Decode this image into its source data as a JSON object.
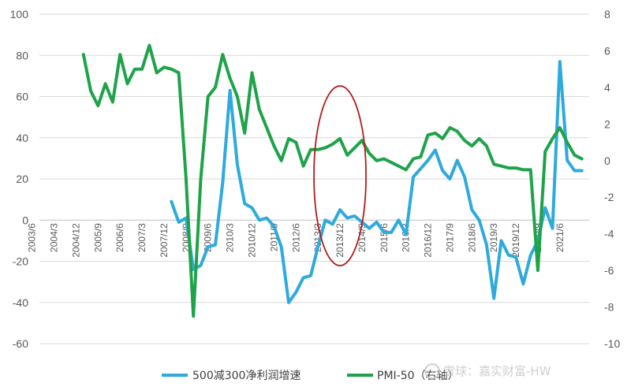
{
  "chart_data": {
    "type": "line",
    "categories": [
      "2003/6",
      "2004/3",
      "2004/12",
      "2005/9",
      "2006/6",
      "2007/3",
      "2007/12",
      "2008/9",
      "2009/6",
      "2010/3",
      "2010/12",
      "2011/9",
      "2012/6",
      "2013/3",
      "2013/12",
      "2014/9",
      "2015/6",
      "2016/3",
      "2016/12",
      "2017/9",
      "2018/6",
      "2019/3",
      "2019/12",
      "2020/9",
      "2021/6"
    ],
    "y_left_ticks": [
      "100",
      "80",
      "60",
      "40",
      "20",
      "0",
      "-20",
      "-40",
      "-60"
    ],
    "y_right_ticks": [
      "8",
      "6",
      "4",
      "2",
      "0",
      "-2",
      "-4",
      "-6",
      "-8",
      "-10"
    ],
    "ylim_left": [
      -60,
      100
    ],
    "ylim_right": [
      -10,
      8
    ],
    "series": [
      {
        "name": "500减300净利润增速",
        "axis": "left",
        "color": "#2eaadc",
        "x": [
          2008.0,
          2008.25,
          2008.5,
          2008.75,
          2009.0,
          2009.25,
          2009.5,
          2009.75,
          2010.0,
          2010.25,
          2010.5,
          2010.75,
          2011.0,
          2011.25,
          2011.5,
          2011.75,
          2012.0,
          2012.25,
          2012.5,
          2012.75,
          2013.0,
          2013.25,
          2013.5,
          2013.75,
          2014.0,
          2014.25,
          2014.5,
          2014.75,
          2015.0,
          2015.25,
          2015.5,
          2015.75,
          2016.0,
          2016.25,
          2016.5,
          2016.75,
          2017.0,
          2017.25,
          2017.5,
          2017.75,
          2018.0,
          2018.25,
          2018.5,
          2018.75,
          2019.0,
          2019.25,
          2019.5,
          2019.75,
          2020.0,
          2020.25,
          2020.5,
          2020.75,
          2021.0,
          2021.25,
          2021.5,
          2021.75,
          2022.0
        ],
        "values": [
          9,
          -1,
          1,
          -24,
          -22,
          -13,
          -12,
          18,
          63,
          27,
          8,
          6,
          0,
          1,
          -3,
          -13,
          -40,
          -35,
          -28,
          -27,
          -13,
          0,
          -2,
          5,
          1,
          2,
          -1,
          -4,
          -1,
          -6,
          -6,
          0,
          -7,
          21,
          25,
          29,
          34,
          24,
          20,
          29,
          21,
          5,
          0,
          -12,
          -38,
          -10,
          -17,
          -18,
          -31,
          -17,
          -10,
          6,
          -4,
          77,
          29,
          24,
          24
        ]
      },
      {
        "name": "PMI-50（右轴）",
        "axis": "right",
        "color": "#1fa34a",
        "x": [
          2005.0,
          2005.25,
          2005.5,
          2005.75,
          2006.0,
          2006.25,
          2006.5,
          2006.75,
          2007.0,
          2007.25,
          2007.5,
          2007.75,
          2008.0,
          2008.25,
          2008.5,
          2008.75,
          2009.0,
          2009.25,
          2009.5,
          2009.75,
          2010.0,
          2010.25,
          2010.5,
          2010.75,
          2011.0,
          2011.25,
          2011.5,
          2011.75,
          2012.0,
          2012.25,
          2012.5,
          2012.75,
          2013.0,
          2013.25,
          2013.5,
          2013.75,
          2014.0,
          2014.25,
          2014.5,
          2014.75,
          2015.0,
          2015.25,
          2015.5,
          2015.75,
          2016.0,
          2016.25,
          2016.5,
          2016.75,
          2017.0,
          2017.25,
          2017.5,
          2017.75,
          2018.0,
          2018.25,
          2018.5,
          2018.75,
          2019.0,
          2019.25,
          2019.5,
          2019.75,
          2020.0,
          2020.25,
          2020.5,
          2020.75,
          2021.0,
          2021.25,
          2021.5,
          2021.75,
          2022.0
        ],
        "values": [
          5.8,
          3.8,
          3.0,
          4.2,
          3.2,
          5.8,
          4.2,
          5.0,
          5.0,
          6.3,
          4.8,
          5.1,
          5.0,
          4.8,
          -1.0,
          -8.5,
          -1.0,
          3.5,
          4.0,
          5.8,
          4.5,
          3.5,
          1.5,
          4.8,
          2.8,
          1.8,
          0.8,
          0,
          1.2,
          1.0,
          -0.3,
          0.6,
          0.6,
          0.7,
          0.9,
          1.2,
          0.3,
          0.7,
          1.1,
          0.4,
          0,
          0.1,
          -0.1,
          -0.3,
          -0.5,
          0.1,
          0.2,
          1.4,
          1.5,
          1.2,
          1.8,
          1.6,
          1.1,
          0.8,
          1.2,
          0.8,
          -0.2,
          -0.3,
          -0.4,
          -0.4,
          -0.5,
          -0.5,
          -6.0,
          0.5,
          1.2,
          1.8,
          1.0,
          0.3,
          0.1
        ]
      }
    ],
    "annotations": [
      {
        "type": "ellipse",
        "around": "2013/12",
        "color": "#b01c1c"
      }
    ],
    "grid": true,
    "legend": "bottom"
  },
  "legend": {
    "items": [
      "500减300净利润增速",
      "PMI-50（右轴）"
    ]
  },
  "watermark": {
    "text": "雪球：嘉实财富-HW"
  }
}
